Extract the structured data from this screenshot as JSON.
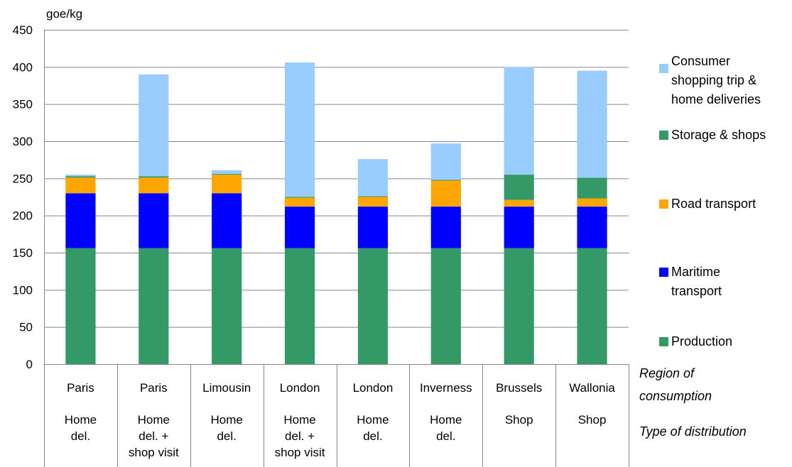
{
  "chart_data": {
    "type": "bar",
    "stacked": true,
    "ylabel": "goe/kg",
    "ylim": [
      0,
      450
    ],
    "yticks": [
      0,
      50,
      100,
      150,
      200,
      250,
      300,
      350,
      400,
      450
    ],
    "grid": true,
    "legend_position": "right",
    "categories": [
      {
        "region": "Paris",
        "distribution": "Home del."
      },
      {
        "region": "Paris",
        "distribution": "Home del. + shop visit"
      },
      {
        "region": "Limousin",
        "distribution": "Home del."
      },
      {
        "region": "London",
        "distribution": "Home del. + shop visit"
      },
      {
        "region": "London",
        "distribution": "Home del."
      },
      {
        "region": "Inverness",
        "distribution": "Home del."
      },
      {
        "region": "Brussels",
        "distribution": "Shop"
      },
      {
        "region": "Wallonia",
        "distribution": "Shop"
      }
    ],
    "category_lines": [
      [
        [
          "Paris"
        ],
        [
          "Home",
          "del."
        ]
      ],
      [
        [
          "Paris"
        ],
        [
          "Home",
          "del. +",
          "shop visit"
        ]
      ],
      [
        [
          "Limousin"
        ],
        [
          "Home",
          "del."
        ]
      ],
      [
        [
          "London"
        ],
        [
          "Home",
          "del. +",
          "shop visit"
        ]
      ],
      [
        [
          "London"
        ],
        [
          "Home",
          "del."
        ]
      ],
      [
        [
          "Inverness"
        ],
        [
          "Home",
          "del."
        ]
      ],
      [
        [
          "Brussels"
        ],
        [
          "Shop"
        ]
      ],
      [
        [
          "Wallonia"
        ],
        [
          "Shop"
        ]
      ]
    ],
    "row_labels": [
      [
        "Region of",
        "consumption"
      ],
      [
        "Type of distribution"
      ]
    ],
    "series": [
      {
        "name": "Production",
        "color": "#339966",
        "values": [
          156,
          156,
          156,
          156,
          156,
          156,
          156,
          156
        ]
      },
      {
        "name": "Maritime transport",
        "color": "#0000ff",
        "values": [
          74,
          74,
          74,
          56,
          56,
          56,
          56,
          56
        ]
      },
      {
        "name": "Road transport",
        "color": "#ffa500",
        "values": [
          21,
          21,
          25,
          12,
          13,
          35,
          9,
          11
        ]
      },
      {
        "name": "Storage & shops",
        "color": "#339966",
        "values": [
          2,
          2,
          1,
          1,
          1,
          1,
          34,
          28
        ]
      },
      {
        "name": "Consumer shopping trip & home deliveries",
        "color": "#99ccff",
        "values": [
          2,
          137,
          5,
          181,
          50,
          49,
          145,
          144
        ]
      }
    ],
    "legend_lines": [
      [
        "Consumer",
        "shopping trip &",
        "home deliveries"
      ],
      [
        "Storage & shops"
      ],
      [
        "Road transport"
      ],
      [
        "Maritime",
        "transport"
      ],
      [
        "Production"
      ]
    ],
    "legend_order": [
      4,
      3,
      2,
      1,
      0
    ]
  }
}
